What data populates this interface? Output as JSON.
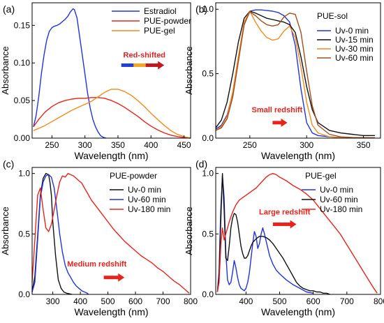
{
  "chart_data": [
    {
      "type": "line",
      "panel_label": "(a)",
      "xlabel": "Wavelength (nm)",
      "ylabel": "Absorbance",
      "xlim": [
        220,
        460
      ],
      "ylim": [
        0,
        0.18
      ],
      "xticks": [
        250,
        300,
        350,
        400,
        450
      ],
      "yticks": [
        0.0,
        0.05,
        0.1,
        0.15
      ],
      "ytick_labels": [
        "0.00",
        "0.05",
        "0.10",
        "0.15"
      ],
      "legend_position": "top-right",
      "annotation": {
        "text": "Red-shifted",
        "color": "#d62728",
        "x": 390,
        "y": 0.107,
        "arrow_x0": 355,
        "arrow_x1": 420,
        "arrow_y": 0.097,
        "arrow_colors": [
          "#1f3fd6",
          "#f5a623",
          "#c0181d"
        ]
      },
      "series": [
        {
          "name": "Estradiol",
          "color": "#2233dd",
          "x": [
            222,
            226,
            230,
            234,
            238,
            242,
            246,
            250,
            254,
            258,
            262,
            266,
            270,
            274,
            278,
            282,
            284,
            288,
            292,
            296,
            300,
            304,
            308,
            312,
            316,
            320,
            324,
            328,
            332
          ],
          "y": [
            0.015,
            0.03,
            0.055,
            0.085,
            0.11,
            0.13,
            0.142,
            0.147,
            0.149,
            0.15,
            0.152,
            0.155,
            0.158,
            0.162,
            0.168,
            0.172,
            0.171,
            0.16,
            0.135,
            0.11,
            0.085,
            0.06,
            0.04,
            0.025,
            0.015,
            0.008,
            0.003,
            0.001,
            0.0
          ]
        },
        {
          "name": "PUE-powder",
          "color": "#e8231c",
          "x": [
            222,
            230,
            240,
            250,
            260,
            270,
            280,
            290,
            300,
            310,
            320,
            330,
            340,
            350,
            360,
            370,
            380,
            390,
            400,
            410,
            420,
            430,
            440,
            450,
            460
          ],
          "y": [
            0.015,
            0.025,
            0.035,
            0.042,
            0.047,
            0.05,
            0.052,
            0.053,
            0.053,
            0.054,
            0.054,
            0.053,
            0.05,
            0.046,
            0.041,
            0.035,
            0.029,
            0.022,
            0.016,
            0.011,
            0.007,
            0.004,
            0.002,
            0.001,
            0.0
          ]
        },
        {
          "name": "PUE-gel",
          "color": "#f08b1f",
          "x": [
            222,
            230,
            240,
            250,
            260,
            270,
            280,
            290,
            300,
            310,
            320,
            330,
            340,
            350,
            360,
            370,
            380,
            390,
            400,
            410,
            420,
            430,
            440,
            450,
            460
          ],
          "y": [
            0.01,
            0.013,
            0.017,
            0.022,
            0.027,
            0.032,
            0.037,
            0.041,
            0.045,
            0.049,
            0.055,
            0.061,
            0.065,
            0.065,
            0.062,
            0.057,
            0.05,
            0.042,
            0.033,
            0.025,
            0.017,
            0.01,
            0.005,
            0.002,
            0.0
          ]
        }
      ]
    },
    {
      "type": "line",
      "panel_label": "(b)",
      "legend_title": "PUE-sol",
      "xlabel": "Wavelength (nm)",
      "ylabel": "Absorbance",
      "xlim": [
        220,
        365
      ],
      "ylim": [
        0,
        1.05
      ],
      "xticks": [
        250,
        300,
        350
      ],
      "yticks": [
        0.0,
        0.5,
        1.0
      ],
      "ytick_labels": [
        "0.0",
        "0.5",
        "1.0"
      ],
      "legend_position": "top-right",
      "annotation": {
        "text": "Small redshift",
        "color": "#e8231c",
        "x": 274,
        "y": 0.2,
        "arrow_x0": 270,
        "arrow_x1": 283,
        "arrow_y": 0.12,
        "arrow_colors": [
          "#e8231c"
        ]
      },
      "series": [
        {
          "name": "Uv-0 min",
          "color": "#2233dd",
          "x": [
            220,
            225,
            230,
            235,
            240,
            245,
            250,
            255,
            260,
            265,
            270,
            275,
            280,
            285,
            290,
            295,
            300,
            305,
            310,
            320,
            330,
            340,
            350,
            360
          ],
          "y": [
            0.07,
            0.1,
            0.18,
            0.35,
            0.62,
            0.88,
            0.985,
            0.995,
            0.995,
            0.99,
            0.985,
            0.975,
            0.95,
            0.9,
            0.72,
            0.38,
            0.12,
            0.04,
            0.02,
            0.01,
            0.005,
            0.003,
            0.002,
            0.002
          ]
        },
        {
          "name": "Uv-15 min",
          "color": "#111111",
          "x": [
            220,
            225,
            230,
            235,
            240,
            245,
            250,
            255,
            260,
            265,
            270,
            275,
            280,
            285,
            290,
            295,
            300,
            305,
            310,
            320,
            330,
            340,
            350,
            360
          ],
          "y": [
            0.08,
            0.14,
            0.28,
            0.5,
            0.75,
            0.93,
            0.985,
            0.97,
            0.95,
            0.93,
            0.92,
            0.91,
            0.9,
            0.88,
            0.82,
            0.63,
            0.4,
            0.22,
            0.12,
            0.06,
            0.04,
            0.03,
            0.02,
            0.02
          ]
        },
        {
          "name": "Uv-30 min",
          "color": "#f08b1f",
          "x": [
            220,
            225,
            230,
            235,
            240,
            245,
            250,
            255,
            260,
            265,
            270,
            275,
            280,
            285,
            290,
            295,
            300,
            305,
            310,
            320,
            330,
            340,
            350,
            360
          ],
          "y": [
            0.06,
            0.09,
            0.17,
            0.36,
            0.64,
            0.9,
            0.985,
            0.9,
            0.83,
            0.78,
            0.76,
            0.77,
            0.83,
            0.87,
            0.78,
            0.55,
            0.28,
            0.1,
            0.04,
            0.01,
            0.005,
            0.003,
            0.002,
            0.002
          ]
        },
        {
          "name": "Uv-60 min",
          "color": "#a0501e",
          "x": [
            220,
            225,
            230,
            235,
            240,
            245,
            250,
            255,
            260,
            265,
            270,
            275,
            280,
            285,
            290,
            295,
            300,
            305,
            310,
            320,
            330,
            340,
            350,
            360
          ],
          "y": [
            0.06,
            0.08,
            0.15,
            0.32,
            0.6,
            0.88,
            0.98,
            0.95,
            0.91,
            0.88,
            0.87,
            0.88,
            0.94,
            0.97,
            0.96,
            0.82,
            0.52,
            0.25,
            0.1,
            0.03,
            0.01,
            0.005,
            0.003,
            0.002
          ]
        }
      ]
    },
    {
      "type": "line",
      "panel_label": "(c)",
      "legend_title": "PUE-powder",
      "xlabel": "Wavelength (nm)",
      "ylabel": "Absorbance",
      "xlim": [
        225,
        800
      ],
      "ylim": [
        0,
        1.05
      ],
      "xticks": [
        300,
        400,
        500,
        600,
        700,
        800
      ],
      "yticks": [
        0.0,
        0.5,
        1.0
      ],
      "ytick_labels": [
        "0.0",
        "0.5",
        "1.0"
      ],
      "legend_position": "top-right",
      "annotation": {
        "text": "Medium redshift",
        "color": "#e8231c",
        "x": 460,
        "y": 0.23,
        "arrow_x0": 485,
        "arrow_x1": 560,
        "arrow_y": 0.14,
        "arrow_colors": [
          "#e8231c"
        ]
      },
      "series": [
        {
          "name": "Uv-0 min",
          "color": "#111111",
          "x": [
            225,
            235,
            245,
            255,
            265,
            275,
            285,
            290,
            295,
            300,
            310,
            320,
            330,
            340,
            350,
            360,
            370
          ],
          "y": [
            0.02,
            0.15,
            0.48,
            0.82,
            0.96,
            1.0,
            0.99,
            0.92,
            0.82,
            0.6,
            0.32,
            0.12,
            0.05,
            0.02,
            0.01,
            0.005,
            0.0
          ]
        },
        {
          "name": "Uv-60 min",
          "color": "#2233dd",
          "x": [
            225,
            235,
            245,
            255,
            265,
            275,
            285,
            295,
            305,
            315,
            325,
            335,
            345,
            355,
            365,
            375,
            385,
            395,
            405,
            415,
            425,
            430
          ],
          "y": [
            0.02,
            0.1,
            0.45,
            0.8,
            0.93,
            0.98,
            0.99,
            0.97,
            0.88,
            0.7,
            0.5,
            0.35,
            0.24,
            0.18,
            0.14,
            0.1,
            0.07,
            0.05,
            0.03,
            0.02,
            0.01,
            0.0
          ]
        },
        {
          "name": "Uv-180 min",
          "color": "#e8231c",
          "x": [
            225,
            235,
            245,
            255,
            265,
            275,
            285,
            295,
            305,
            315,
            325,
            335,
            345,
            355,
            365,
            375,
            385,
            395,
            405,
            415,
            425,
            440,
            460,
            480,
            500,
            520,
            540,
            560,
            580,
            600,
            620,
            640,
            660,
            680,
            700,
            720,
            740,
            760,
            780,
            795
          ],
          "y": [
            0.1,
            0.45,
            0.82,
            0.88,
            0.7,
            0.55,
            0.52,
            0.58,
            0.7,
            0.82,
            0.93,
            0.98,
            0.97,
            1.0,
            0.99,
            0.98,
            0.96,
            0.94,
            0.92,
            0.88,
            0.84,
            0.78,
            0.72,
            0.66,
            0.6,
            0.54,
            0.49,
            0.44,
            0.4,
            0.36,
            0.32,
            0.29,
            0.26,
            0.22,
            0.19,
            0.15,
            0.11,
            0.08,
            0.04,
            0.01
          ]
        }
      ]
    },
    {
      "type": "line",
      "panel_label": "(d)",
      "legend_title": "PUE-gel",
      "xlabel": "Wavelength (nm)",
      "ylabel": "Absorbance",
      "xlim": [
        310,
        800
      ],
      "ylim": [
        0,
        1.05
      ],
      "xticks": [
        400,
        500,
        600,
        700,
        800
      ],
      "yticks": [
        0.0,
        0.5,
        1.0
      ],
      "ytick_labels": [
        "0.0",
        "0.5",
        "1.0"
      ],
      "legend_position": "top-right",
      "annotation": {
        "text": "Large redshift",
        "color": "#e8231c",
        "x": 515,
        "y": 0.66,
        "arrow_x0": 480,
        "arrow_x1": 550,
        "arrow_y": 0.58,
        "arrow_colors": [
          "#e8231c"
        ]
      },
      "series": [
        {
          "name": "Uv-0 min",
          "color": "#2233dd",
          "x": [
            315,
            320,
            325,
            330,
            335,
            340,
            345,
            350,
            355,
            360,
            365,
            370,
            375,
            380,
            385,
            390,
            395,
            400,
            405,
            410,
            415,
            420,
            425,
            430,
            435,
            440,
            445,
            450,
            455,
            460,
            465,
            470,
            480,
            490,
            500,
            520,
            540,
            560,
            580,
            600
          ],
          "y": [
            0.02,
            0.2,
            0.7,
            0.98,
            0.8,
            0.35,
            0.12,
            0.08,
            0.1,
            0.18,
            0.28,
            0.22,
            0.14,
            0.08,
            0.05,
            0.04,
            0.03,
            0.05,
            0.1,
            0.18,
            0.3,
            0.42,
            0.52,
            0.48,
            0.38,
            0.42,
            0.5,
            0.55,
            0.5,
            0.44,
            0.38,
            0.32,
            0.25,
            0.2,
            0.17,
            0.12,
            0.08,
            0.05,
            0.02,
            0.01
          ]
        },
        {
          "name": "Uv-60 min",
          "color": "#111111",
          "x": [
            315,
            320,
            325,
            330,
            335,
            340,
            345,
            350,
            355,
            360,
            365,
            370,
            375,
            380,
            385,
            390,
            395,
            400,
            405,
            410,
            415,
            420,
            430,
            440,
            450,
            460,
            470,
            480,
            490,
            500,
            510,
            520,
            530,
            540,
            550,
            560,
            570,
            580,
            590,
            600,
            610,
            620,
            630,
            640,
            650
          ],
          "y": [
            0.02,
            0.15,
            0.6,
            1.0,
            0.7,
            0.3,
            0.28,
            0.4,
            0.55,
            0.63,
            0.67,
            0.66,
            0.6,
            0.5,
            0.4,
            0.34,
            0.3,
            0.3,
            0.32,
            0.36,
            0.4,
            0.43,
            0.46,
            0.48,
            0.48,
            0.47,
            0.45,
            0.42,
            0.38,
            0.34,
            0.3,
            0.25,
            0.2,
            0.15,
            0.1,
            0.07,
            0.05,
            0.04,
            0.03,
            0.03,
            0.02,
            0.02,
            0.01,
            0.01,
            0.0
          ]
        },
        {
          "name": "Uv-180 min",
          "color": "#e8231c",
          "x": [
            315,
            320,
            325,
            330,
            335,
            340,
            345,
            350,
            360,
            370,
            380,
            390,
            400,
            410,
            420,
            430,
            440,
            450,
            460,
            470,
            480,
            490,
            500,
            520,
            540,
            560,
            580,
            600,
            620,
            640,
            660,
            680,
            700,
            720,
            740,
            760,
            780,
            790
          ],
          "y": [
            0.02,
            0.1,
            0.4,
            0.55,
            0.45,
            0.5,
            0.55,
            0.6,
            0.68,
            0.74,
            0.78,
            0.8,
            0.82,
            0.84,
            0.86,
            0.88,
            0.91,
            0.94,
            0.97,
            0.99,
            1.0,
            0.99,
            0.97,
            0.94,
            0.9,
            0.87,
            0.83,
            0.78,
            0.71,
            0.64,
            0.57,
            0.5,
            0.41,
            0.32,
            0.23,
            0.14,
            0.05,
            0.01
          ]
        }
      ]
    }
  ]
}
